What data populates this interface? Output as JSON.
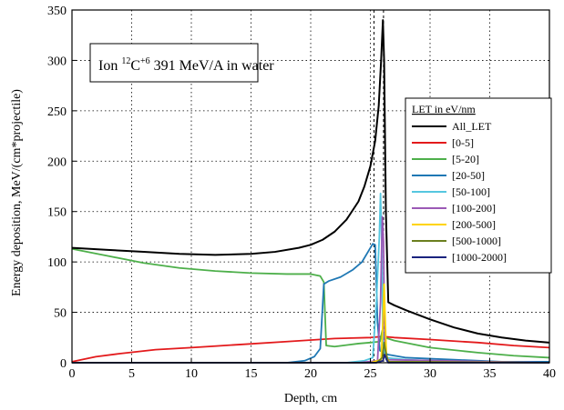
{
  "chart_data": {
    "type": "line",
    "title": "",
    "annotation": {
      "prefix": "Ion ",
      "mass_number": "12",
      "element": "C",
      "charge": "+6",
      "suffix": " 391 MeV/A in water"
    },
    "xlabel": "Depth, cm",
    "ylabel": "Energy deposition, MeV/(cm*projectile)",
    "xlim": [
      0,
      40
    ],
    "ylim": [
      0,
      350
    ],
    "xticks": [
      0,
      5,
      10,
      15,
      20,
      25,
      30,
      35,
      40
    ],
    "yticks": [
      0,
      50,
      100,
      150,
      200,
      250,
      300,
      350
    ],
    "grid": true,
    "grid_style": "dotted",
    "vertical_markers_x": [
      25.3,
      26.1
    ],
    "legend": {
      "title": "LET in eV/nm",
      "placement": "right"
    },
    "series": [
      {
        "name": "All_LET",
        "color": "#000000",
        "points": [
          [
            0,
            114
          ],
          [
            3,
            112
          ],
          [
            6,
            110
          ],
          [
            9,
            108
          ],
          [
            12,
            107
          ],
          [
            15,
            108
          ],
          [
            17,
            110
          ],
          [
            19,
            114
          ],
          [
            20,
            117
          ],
          [
            21,
            122
          ],
          [
            22,
            130
          ],
          [
            23,
            142
          ],
          [
            24,
            160
          ],
          [
            24.5,
            175
          ],
          [
            25,
            195
          ],
          [
            25.4,
            220
          ],
          [
            25.7,
            255
          ],
          [
            25.9,
            300
          ],
          [
            26.05,
            340
          ],
          [
            26.15,
            300
          ],
          [
            26.3,
            150
          ],
          [
            26.5,
            60
          ],
          [
            27,
            57
          ],
          [
            28,
            52
          ],
          [
            30,
            43
          ],
          [
            32,
            35
          ],
          [
            34,
            29
          ],
          [
            36,
            25
          ],
          [
            38,
            22
          ],
          [
            40,
            20
          ]
        ]
      },
      {
        "name": "[0-5]",
        "color": "#e31a1c",
        "points": [
          [
            0,
            1
          ],
          [
            2,
            6
          ],
          [
            4,
            9
          ],
          [
            7,
            13
          ],
          [
            10,
            15
          ],
          [
            14,
            18
          ],
          [
            18,
            21
          ],
          [
            22,
            24
          ],
          [
            25,
            25
          ],
          [
            26,
            26
          ],
          [
            27,
            25
          ],
          [
            30,
            23
          ],
          [
            34,
            20
          ],
          [
            37,
            17
          ],
          [
            40,
            15
          ]
        ]
      },
      {
        "name": "[5-20]",
        "color": "#4daf4a",
        "points": [
          [
            0,
            113
          ],
          [
            3,
            106
          ],
          [
            6,
            99
          ],
          [
            9,
            94
          ],
          [
            12,
            91
          ],
          [
            15,
            89
          ],
          [
            18,
            88
          ],
          [
            20,
            88
          ],
          [
            20.8,
            86
          ],
          [
            21.1,
            80
          ],
          [
            21.3,
            17
          ],
          [
            22,
            16
          ],
          [
            24,
            19
          ],
          [
            25,
            20
          ],
          [
            25.8,
            21
          ],
          [
            26,
            32
          ],
          [
            26.2,
            25
          ],
          [
            27,
            22
          ],
          [
            30,
            15
          ],
          [
            34,
            10
          ],
          [
            37,
            7
          ],
          [
            40,
            5
          ]
        ]
      },
      {
        "name": "[20-50]",
        "color": "#1f78b4",
        "points": [
          [
            0,
            0
          ],
          [
            18,
            0
          ],
          [
            19.5,
            2
          ],
          [
            20.3,
            6
          ],
          [
            20.8,
            14
          ],
          [
            21.1,
            78
          ],
          [
            21.5,
            81
          ],
          [
            22.5,
            85
          ],
          [
            23.5,
            92
          ],
          [
            24.3,
            100
          ],
          [
            24.8,
            110
          ],
          [
            25.2,
            118
          ],
          [
            25.4,
            117
          ],
          [
            25.6,
            40
          ],
          [
            25.8,
            12
          ],
          [
            26.5,
            8
          ],
          [
            28,
            5
          ],
          [
            32,
            3
          ],
          [
            36,
            1
          ],
          [
            40,
            1
          ]
        ]
      },
      {
        "name": "[50-100]",
        "color": "#56c7e0",
        "points": [
          [
            0,
            0
          ],
          [
            23,
            0
          ],
          [
            24.5,
            2
          ],
          [
            25.2,
            5
          ],
          [
            25.5,
            60
          ],
          [
            25.75,
            125
          ],
          [
            25.85,
            168
          ],
          [
            25.95,
            120
          ],
          [
            26.05,
            20
          ],
          [
            26.3,
            5
          ],
          [
            28,
            3
          ],
          [
            32,
            1
          ],
          [
            40,
            0
          ]
        ]
      },
      {
        "name": "[100-200]",
        "color": "#9b59b6",
        "points": [
          [
            0,
            0
          ],
          [
            24,
            0
          ],
          [
            25.6,
            2
          ],
          [
            25.85,
            60
          ],
          [
            26.0,
            145
          ],
          [
            26.1,
            120
          ],
          [
            26.2,
            20
          ],
          [
            26.4,
            3
          ],
          [
            40,
            0
          ]
        ]
      },
      {
        "name": "[200-500]",
        "color": "#ffd400",
        "points": [
          [
            0,
            0
          ],
          [
            25,
            0
          ],
          [
            25.9,
            3
          ],
          [
            26.05,
            40
          ],
          [
            26.15,
            78
          ],
          [
            26.25,
            40
          ],
          [
            26.35,
            5
          ],
          [
            26.6,
            1
          ],
          [
            40,
            0
          ]
        ]
      },
      {
        "name": "[500-1000]",
        "color": "#6b7f1f",
        "points": [
          [
            0,
            0
          ],
          [
            25.5,
            0
          ],
          [
            26.0,
            5
          ],
          [
            26.15,
            20
          ],
          [
            26.3,
            10
          ],
          [
            26.5,
            1
          ],
          [
            40,
            0
          ]
        ]
      },
      {
        "name": "[1000-2000]",
        "color": "#1a237e",
        "points": [
          [
            0,
            0
          ],
          [
            25.5,
            0
          ],
          [
            26.05,
            2
          ],
          [
            26.2,
            8
          ],
          [
            26.35,
            3
          ],
          [
            26.5,
            0
          ],
          [
            40,
            0
          ]
        ]
      }
    ]
  }
}
